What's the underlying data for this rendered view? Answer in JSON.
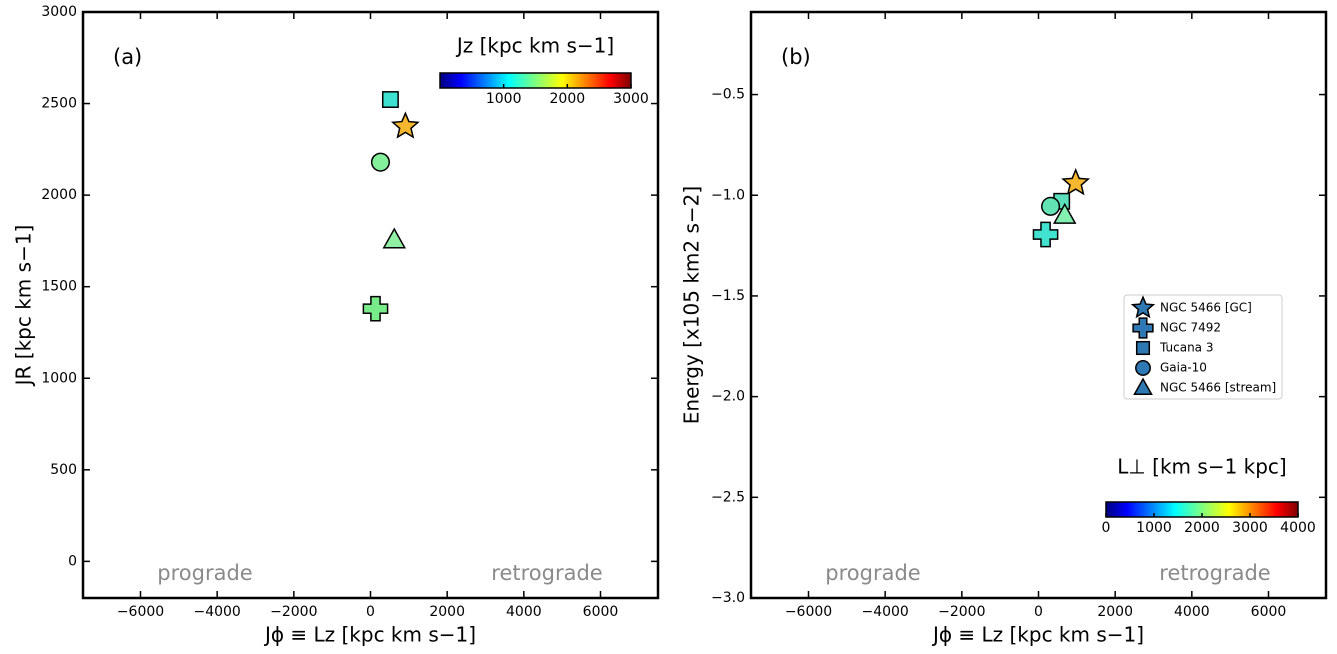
{
  "chart_data": [
    {
      "type": "scatter",
      "panel_label": "(a)",
      "xlabel": "Jϕ ≡ Lz [kpc km s−1]",
      "ylabel": "JR [kpc km s−1]",
      "xlim": [
        -7500,
        7500
      ],
      "ylim": [
        -200,
        3000
      ],
      "xticks": [
        {
          "value": -6000,
          "label": "−6000"
        },
        {
          "value": -4000,
          "label": "−4000"
        },
        {
          "value": -2000,
          "label": "−2000"
        },
        0,
        2000,
        4000,
        6000
      ],
      "yticks": [
        0,
        500,
        1000,
        1500,
        2000,
        2500,
        3000
      ],
      "annotations": [
        "prograde",
        "retrograde"
      ],
      "colorbar": {
        "label": "Jz [kpc km s−1]",
        "colormap": "jet",
        "lim": [
          0,
          3000
        ],
        "ticks": [
          1000,
          2000,
          3000
        ],
        "corner": "upper right"
      },
      "series": [
        {
          "marker": "star",
          "color": "#f5b730",
          "x": [
            910
          ],
          "values": [
            2375
          ]
        },
        {
          "marker": "plus",
          "color": "#78ec88",
          "x": [
            130
          ],
          "values": [
            1380
          ]
        },
        {
          "marker": "square",
          "color": "#3ee0d0",
          "x": [
            520
          ],
          "values": [
            2522
          ]
        },
        {
          "marker": "circle",
          "color": "#84f09c",
          "x": [
            260
          ],
          "values": [
            2180
          ]
        },
        {
          "marker": "triangle",
          "color": "#92f0a4",
          "x": [
            620
          ],
          "values": [
            1755
          ]
        }
      ]
    },
    {
      "type": "scatter",
      "panel_label": "(b)",
      "xlabel": "Jϕ ≡ Lz [kpc km s−1]",
      "ylabel": "Energy [x105 km2 s−2]",
      "xlim": [
        -7500,
        7500
      ],
      "ylim": [
        -3.0,
        -0.09
      ],
      "xticks": [
        {
          "value": -6000,
          "label": "−6000"
        },
        {
          "value": -4000,
          "label": "−4000"
        },
        {
          "value": -2000,
          "label": "−2000"
        },
        0,
        2000,
        4000,
        6000
      ],
      "yticks": [
        {
          "value": -3.0,
          "label": "−3.0"
        },
        {
          "value": -2.5,
          "label": "−2.5"
        },
        {
          "value": -2.0,
          "label": "−2.0"
        },
        {
          "value": -1.5,
          "label": "−1.5"
        },
        {
          "value": -1.0,
          "label": "−1.0"
        },
        {
          "value": -0.5,
          "label": "−0.5"
        }
      ],
      "annotations": [
        "prograde",
        "retrograde"
      ],
      "colorbar": {
        "label": "L⊥ [km s−1 kpc]",
        "colormap": "jet",
        "lim": [
          0,
          4000
        ],
        "ticks": [
          0,
          1000,
          2000,
          3000,
          4000
        ],
        "corner": "lower right"
      },
      "legend_marker_color": "#2e78b4",
      "series": [
        {
          "name": "NGC 5466 [GC]",
          "marker": "star",
          "color": "#f5b730",
          "x": [
            970
          ],
          "values": [
            -0.94
          ]
        },
        {
          "name": "NGC 7492",
          "marker": "plus",
          "color": "#42e2d0",
          "x": [
            184
          ],
          "values": [
            -1.195
          ]
        },
        {
          "name": "Tucana 3",
          "marker": "square",
          "color": "#5ce0bc",
          "x": [
            605
          ],
          "values": [
            -1.03
          ]
        },
        {
          "name": "Gaia-10",
          "marker": "circle",
          "color": "#62e4b4",
          "x": [
            315
          ],
          "values": [
            -1.055
          ]
        },
        {
          "name": "NGC 5466 [stream]",
          "marker": "triangle",
          "color": "#84f0b0",
          "x": [
            684
          ],
          "values": [
            -1.1
          ]
        }
      ]
    }
  ]
}
